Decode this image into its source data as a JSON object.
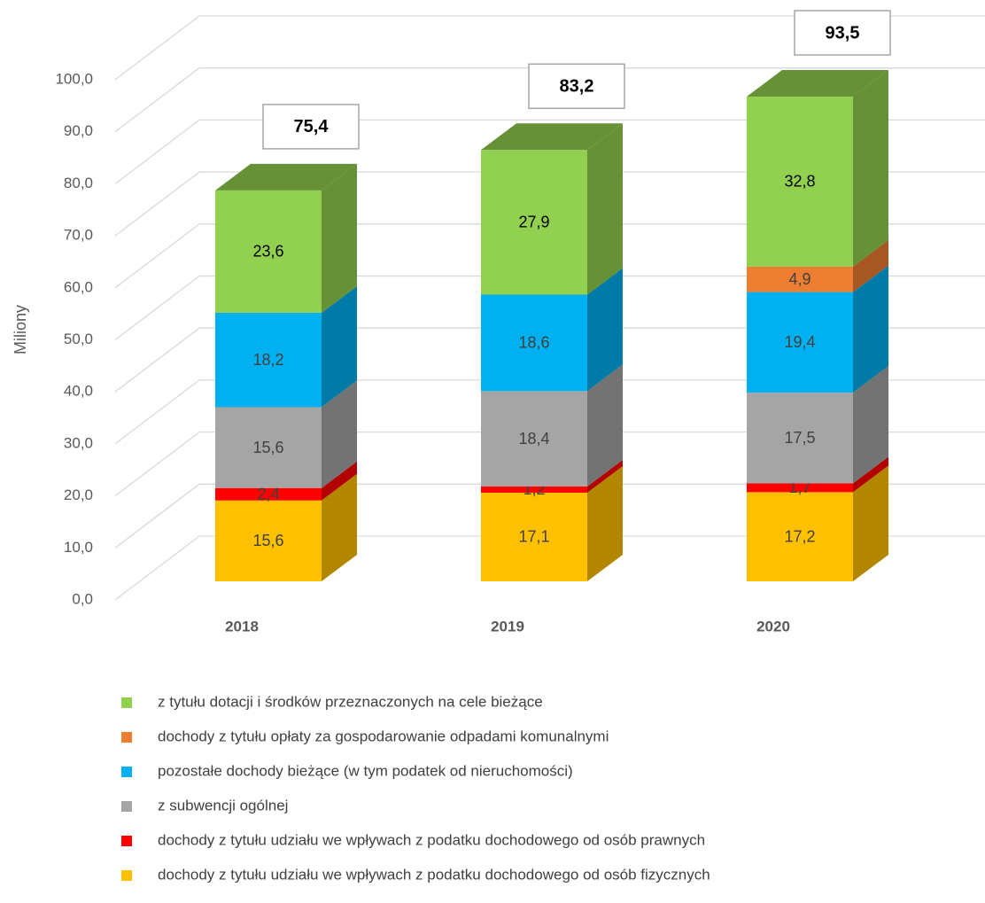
{
  "chart_data": {
    "type": "bar3d",
    "y_axis_label": "Miliony",
    "categories": [
      "2018",
      "2019",
      "2020"
    ],
    "series": [
      {
        "name": "dochody z tytułu udziału we wpływach z podatku dochodowego od osób fizycznych",
        "color": "#ffc000",
        "side_color": "#b38600",
        "values": [
          15.6,
          17.1,
          17.2
        ],
        "value_labels": [
          "15,6",
          "17,1",
          "17,2"
        ]
      },
      {
        "name": "dochody z tytułu udziału we wpływach z podatku dochodowego od osób prawnych",
        "color": "#ff0000",
        "side_color": "#b30000",
        "values": [
          2.4,
          1.2,
          1.7
        ],
        "value_labels": [
          "2,4",
          "1,2",
          "1,7"
        ]
      },
      {
        "name": "z subwencji ogólnej",
        "color": "#a5a5a5",
        "side_color": "#737373",
        "values": [
          15.6,
          18.4,
          17.5
        ],
        "value_labels": [
          "15,6",
          "18,4",
          "17,5"
        ]
      },
      {
        "name": "pozostałe dochody bieżące (w tym podatek od nieruchomości)",
        "color": "#00b0f0",
        "side_color": "#007ba8",
        "values": [
          18.2,
          18.6,
          19.4
        ],
        "value_labels": [
          "18,2",
          "18,6",
          "19,4"
        ]
      },
      {
        "name": "dochody z tytułu opłaty za gospodarowanie odpadami komunalnymi",
        "color": "#ed7d31",
        "side_color": "#a65722",
        "values": [
          null,
          null,
          4.9
        ],
        "value_labels": [
          null,
          null,
          "4,9"
        ]
      },
      {
        "name": "z tytułu dotacji i środków przeznaczonych na cele bieżące",
        "color": "#92d050",
        "side_color": "#669137",
        "values": [
          23.6,
          27.9,
          32.8
        ],
        "value_labels": [
          "23,6",
          "27,9",
          "32,8"
        ]
      }
    ],
    "totals": [
      75.4,
      83.2,
      93.5
    ],
    "total_labels": [
      "75,4",
      "83,2",
      "93,5"
    ],
    "ylim": [
      0,
      100
    ],
    "yticks": [
      {
        "value": 0,
        "label": "0,0"
      },
      {
        "value": 10,
        "label": "10,0"
      },
      {
        "value": 20,
        "label": "20,0"
      },
      {
        "value": 30,
        "label": "30,0"
      },
      {
        "value": 40,
        "label": "40,0"
      },
      {
        "value": 50,
        "label": "50,0"
      },
      {
        "value": 60,
        "label": "60,0"
      },
      {
        "value": 70,
        "label": "70,0"
      },
      {
        "value": 80,
        "label": "80,0"
      },
      {
        "value": 90,
        "label": "90,0"
      },
      {
        "value": 100,
        "label": "100,0"
      }
    ],
    "grid": true
  }
}
